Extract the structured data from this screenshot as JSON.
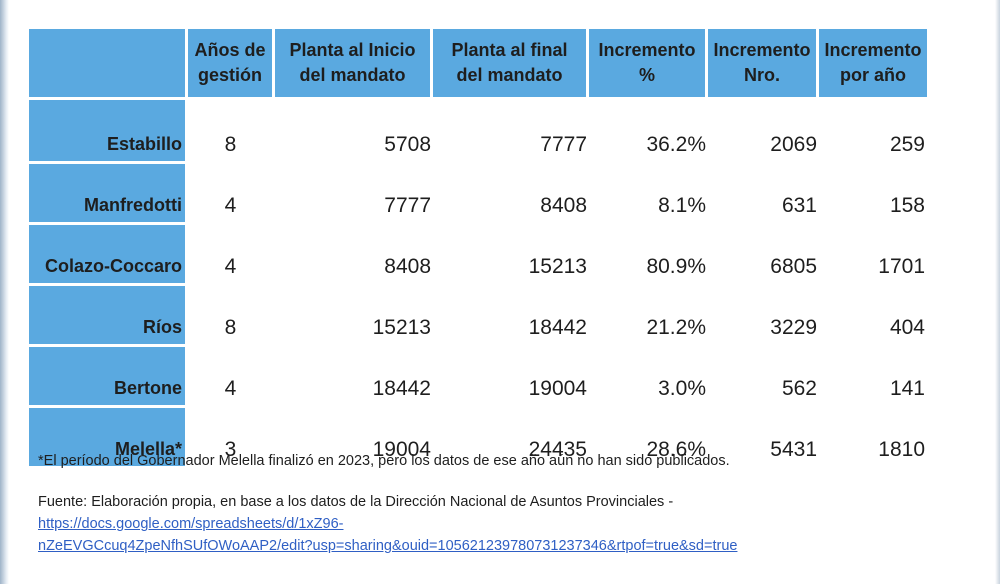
{
  "table": {
    "headers": [
      "",
      "Años de gestión",
      "Planta al Inicio del mandato",
      "Planta al final del mandato",
      "Incremento %",
      "Incremento Nro.",
      "Incremento por año"
    ],
    "rows": [
      {
        "name": "Estabillo",
        "years": "8",
        "start": "5708",
        "end": "7777",
        "pct": "36.2%",
        "nro": "2069",
        "per_year": "259"
      },
      {
        "name": "Manfredotti",
        "years": "4",
        "start": "7777",
        "end": "8408",
        "pct": "8.1%",
        "nro": "631",
        "per_year": "158"
      },
      {
        "name": "Colazo-Coccaro",
        "years": "4",
        "start": "8408",
        "end": "15213",
        "pct": "80.9%",
        "nro": "6805",
        "per_year": "1701"
      },
      {
        "name": "Ríos",
        "years": "8",
        "start": "15213",
        "end": "18442",
        "pct": "21.2%",
        "nro": "3229",
        "per_year": "404"
      },
      {
        "name": "Bertone",
        "years": "4",
        "start": "18442",
        "end": "19004",
        "pct": "3.0%",
        "nro": "562",
        "per_year": "141"
      },
      {
        "name": "Melella*",
        "years": "3",
        "start": "19004",
        "end": "24435",
        "pct": "28.6%",
        "nro": "5431",
        "per_year": "1810"
      }
    ]
  },
  "footnote": "*El período del Gobernador Melella finalizó en 2023, pero los datos de ese año aún no han sido publicados.",
  "source": {
    "text": "Fuente: Elaboración propia, en base a los datos de la Dirección Nacional de Asuntos Provinciales -",
    "link_line1": "https://docs.google.com/spreadsheets/d/1xZ96-",
    "link_line2": "nZeEVGCcuq4ZpeNfhSUfOWoAAP2/edit?usp=sharing&ouid=105621239780731237346&rtpof=true&sd=true"
  }
}
